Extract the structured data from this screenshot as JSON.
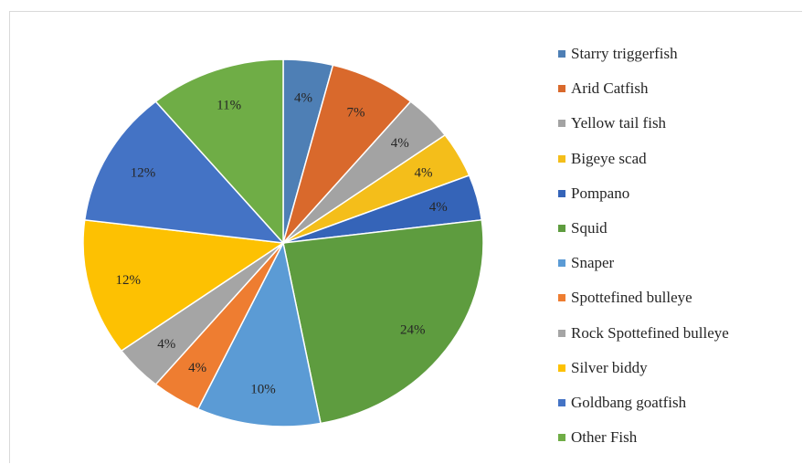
{
  "chart_data": {
    "type": "pie",
    "legend_position": "right",
    "slices": [
      {
        "label": "Starry triggerfish",
        "value": 4,
        "display": "4%",
        "color": "#4e7fb5"
      },
      {
        "label": "Arid Catfish",
        "value": 7,
        "display": "7%",
        "color": "#d9692c"
      },
      {
        "label": "Yellow tail fish",
        "value": 4,
        "display": "4%",
        "color": "#a3a3a3"
      },
      {
        "label": "Bigeye scad",
        "value": 4,
        "display": "4%",
        "color": "#f4be1a"
      },
      {
        "label": "Pompano",
        "value": 4,
        "display": "4%",
        "color": "#3564b8"
      },
      {
        "label": "Squid",
        "value": 24,
        "display": "24%",
        "color": "#5e9c3f"
      },
      {
        "label": "Snaper",
        "value": 10,
        "display": "10%",
        "color": "#5b9bd5"
      },
      {
        "label": "Spottefined bulleye",
        "value": 4,
        "display": "4%",
        "color": "#ee7d31"
      },
      {
        "label": "Rock Spottefined bulleye",
        "value": 4,
        "display": "4%",
        "color": "#a5a5a5"
      },
      {
        "label": "Silver biddy",
        "value": 12,
        "display": "12%",
        "color": "#fdc102"
      },
      {
        "label": "Goldbang goatfish",
        "value": 12,
        "display": "12%",
        "color": "#4473c5"
      },
      {
        "label": "Other Fish",
        "value": 11,
        "display": "11%",
        "color": "#6fad46"
      }
    ]
  }
}
